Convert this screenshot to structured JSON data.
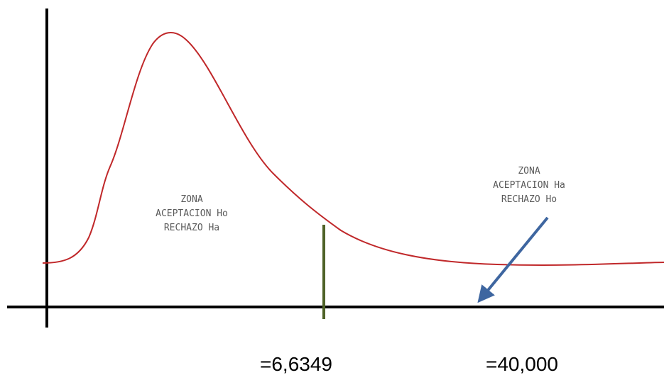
{
  "colors": {
    "curve": "#c0282a",
    "axes": "#000000",
    "critical_line": "#4f6228",
    "arrow": "#3e66a0",
    "zone_text": "#5a5a5a"
  },
  "zones": {
    "left": {
      "line1": "ZONA",
      "line2": "ACEPTACION Ho",
      "line3": "RECHAZO Ha"
    },
    "right": {
      "line1": "ZONA",
      "line2": "ACEPTACION Ha",
      "line3": "RECHAZO Ho"
    }
  },
  "values": {
    "critical": "=6,6349",
    "statistic": "=40,000"
  }
}
